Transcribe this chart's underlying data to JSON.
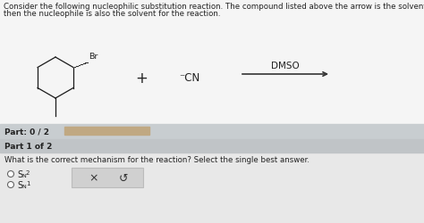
{
  "bg_color": "#d4d4d4",
  "white_bg": "#f5f5f5",
  "header_text_line1": "Consider the following nucleophilic substitution reaction. The compound listed above the arrow is the solvent for the reaction. If nothin",
  "header_text_line2": "then the nucleophile is also the solvent for the reaction.",
  "part_label": "Part: 0 / 2",
  "part1_label": "Part 1 of 2",
  "question_text": "What is the correct mechanism for the reaction? Select the single best answer.",
  "dmso_label": "DMSO",
  "plus_label": "+",
  "cn_label": "⁻CN",
  "br_label": "Br",
  "progress_color": "#b0b0b0",
  "progress_bg": "#c8c8c8",
  "arrow_color": "#333333",
  "text_color": "#222222",
  "part_bg": "#c8cdd0",
  "part1_bg": "#c0c4c7",
  "bottom_bg": "#e0e0e0",
  "btn_bg": "#d8d8d8",
  "header_font_size": 6.2,
  "body_font_size": 6.5
}
